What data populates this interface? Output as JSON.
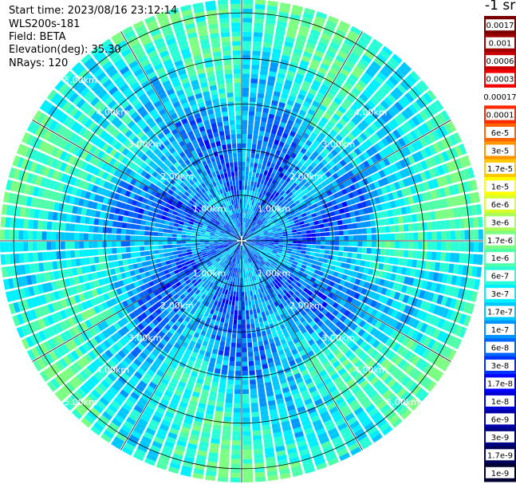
{
  "header": {
    "start_time": "Start time: 2023/08/16 23:12:14",
    "instrument": "WLS200s-181",
    "field": "Field: BETA",
    "elevation": "Elevation(deg): 35.30",
    "nrays": "NRays: 120"
  },
  "colorbar": {
    "unit_label": "-1 sr",
    "ticks": [
      "0.0017",
      "0.001",
      "0.0006",
      "0.0003",
      "0.00017",
      "0.0001",
      "6e-5",
      "3e-5",
      "1.7e-5",
      "1e-5",
      "6e-6",
      "3e-6",
      "1.7e-6",
      "1e-6",
      "6e-7",
      "3e-7",
      "1.7e-7",
      "1e-7",
      "6e-8",
      "3e-8",
      "1.7e-8",
      "1e-8",
      "6e-9",
      "3e-9",
      "1.7e-9",
      "1e-9"
    ],
    "colors": [
      "#7a0000",
      "#9c0000",
      "#c80000",
      "#f00000",
      "#ffffff",
      "#ff2a00",
      "#ff6400",
      "#ff9600",
      "#ffc800",
      "#ffff00",
      "#d8ff28",
      "#a8ff58",
      "#7cff82",
      "#50ffaa",
      "#28ffd6",
      "#00f0ff",
      "#00c8ff",
      "#0096ff",
      "#0064ff",
      "#0032ff",
      "#0000ff",
      "#0000d2",
      "#0000aa",
      "#000082",
      "#00005a",
      "#000032"
    ]
  },
  "chart_data": {
    "type": "polar-ppi",
    "range_ring_labels": [
      "1.00km",
      "2.00km",
      "3.00km",
      "4.00km",
      "5.00km"
    ],
    "range_rings_km": [
      1,
      2,
      3,
      4,
      5
    ],
    "max_range_km": 5.3,
    "n_rays": 120,
    "n_gates": 52,
    "grid_line_angles_deg": [
      0,
      30,
      60,
      90,
      120,
      150,
      180,
      210,
      240,
      270,
      300,
      330
    ],
    "value_scale": "log",
    "value_range": [
      1e-09,
      0.0017
    ],
    "dominant_value_range": [
      1e-08,
      1e-06
    ],
    "palette": [
      "#0000ff",
      "#0032ff",
      "#0064ff",
      "#0096ff",
      "#00c8ff",
      "#00f0ff",
      "#28ffd6",
      "#50ffaa",
      "#7cff82"
    ]
  }
}
